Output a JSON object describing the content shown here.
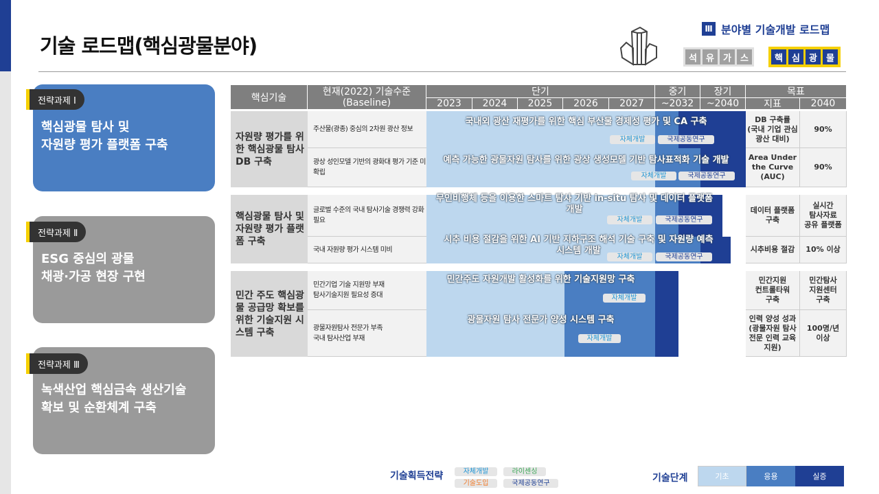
{
  "page": {
    "title": "기술 로드맵(핵심광물분야)",
    "section_num": "Ⅲ",
    "section_title": "분야별 기술개발 로드맵",
    "fields": [
      {
        "chars": [
          "석",
          "유",
          "가",
          "스"
        ],
        "active": false
      },
      {
        "chars": [
          "핵",
          "심",
          "광",
          "물"
        ],
        "active": true
      }
    ]
  },
  "tasks": [
    {
      "tab": "전략과제 Ⅰ",
      "title": [
        "핵심광물 탐사 및",
        "자원량 평가 플랫폼 구축"
      ],
      "color": "#4a7ec2"
    },
    {
      "tab": "전략과제 Ⅱ",
      "title": [
        "ESG 중심의 광물",
        "채광·가공 현장 구현"
      ],
      "color": "#9a9a9a"
    },
    {
      "tab": "전략과제 Ⅲ",
      "title": [
        "녹색산업 핵심금속 생산기술",
        "확보 및 순환체계 구축"
      ],
      "color": "#9a9a9a"
    }
  ],
  "table": {
    "headers": {
      "tech": "핵심기술",
      "baseline": "현재(2022) 기술수준\n(Baseline)",
      "short": "단기",
      "mid": "중기",
      "long": "장기",
      "goal": "목표",
      "years": [
        "2023",
        "2024",
        "2025",
        "2026",
        "2027",
        "~2032",
        "~2040"
      ],
      "indicator": "지표",
      "goal_year": "2040"
    },
    "groups": [
      {
        "tech": "자원량 평가를 위한 핵심광물 탐사 DB 구축",
        "rows": [
          {
            "baseline": "주산물(광종) 중심의 2차원 광산 정보",
            "task": "국내외 광산 재평가를 위한 핵심 부산물 경제성 평가 및 CA 구축",
            "strategies": [
              "자체개발",
              "국제공동연구"
            ],
            "indicator": "DB 구축률\n(국내 기업 관심\n광산 대비)",
            "target": "90%"
          },
          {
            "baseline": "광상 성인모델 기반의 광화대 평가 기준 미확립",
            "task": "예측 가능한 광물자원 탐사를 위한 광상 생성모델 기반 탐사표적화 기술 개발",
            "strategies": [
              "자체개발",
              "국제공동연구"
            ],
            "indicator": "Area Under\nthe Curve\n(AUC)",
            "target": "90%"
          }
        ]
      },
      {
        "tech": "핵심광물 탐사 및 자원량 평가 플랫폼 구축",
        "rows": [
          {
            "baseline": "글로벌 수준의 국내 탐사기술 경쟁력 강화 필요",
            "task": "무인비행체 등을 이용한 스마트 탐사 기반 in-situ 탐사 및 데이터 플랫폼\n개발",
            "strategies": [
              "자체개발",
              "국제공동연구"
            ],
            "indicator": "데이터 플랫폼\n구축",
            "target": "실시간\n탐사자료\n공유 플랫폼"
          },
          {
            "baseline": "국내 자원량 평가 시스템 미비",
            "task": "시추 비용 절감을 위한 AI 기반 지하구조 해석 기술 구축 및 자원량 예측\n시스템 개발",
            "strategies": [
              "자체개발",
              "국제공동연구"
            ],
            "indicator": "시추비용 절감",
            "target": "10% 이상"
          }
        ]
      },
      {
        "tech": "민간 주도 핵심광물 공급망 확보를 위한 기술지원 시스템 구축",
        "rows": [
          {
            "baseline": "민간기업 기술 지원망 부재\n탐사기술지원 필요성 증대",
            "task": "민간주도 자원개발 활성화를 위한 기술지원망 구축",
            "strategies": [
              "자체개발"
            ],
            "indicator": "민간지원\n컨트롤타워\n구축",
            "target": "민간탐사\n지원센터\n구축"
          },
          {
            "baseline": "광물자원탐사 전문가 부족\n국내 탐사산업 부재",
            "task": "광물자원 탐사 전문가 양성 시스템 구축",
            "strategies": [
              "자체개발"
            ],
            "indicator": "인력 양성 성과\n(광물자원 탐사\n전문 인력 교육\n지원)",
            "target": "100명/년\n이상"
          }
        ]
      }
    ]
  },
  "legend": {
    "strategy_title": "기술획득전략",
    "strategies": [
      {
        "label": "자체개발",
        "color": "#2196d6"
      },
      {
        "label": "라이센싱",
        "color": "#3aa655"
      },
      {
        "label": "기술도입",
        "color": "#f07a2a"
      },
      {
        "label": "국제공동연구",
        "color": "#1f3f94"
      }
    ],
    "stage_title": "기술단계",
    "stages": [
      {
        "label": "기초",
        "color": "#bdd7ee"
      },
      {
        "label": "응용",
        "color": "#4a7ec2"
      },
      {
        "label": "실증",
        "color": "#1f3f94"
      }
    ]
  }
}
